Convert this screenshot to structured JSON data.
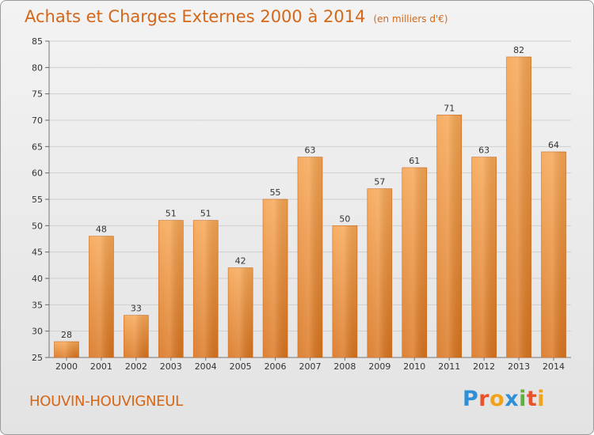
{
  "header": {
    "title": "Achats et Charges Externes 2000 à 2014",
    "unit": "(en milliers d'€)"
  },
  "footer": {
    "commune": "HOUVIN-HOUVIGNEUL",
    "brand": "Proxiti"
  },
  "colors": {
    "title": "#d4671a",
    "bar_light": "#f6a552",
    "bar_dark": "#d9741e",
    "grid": "#cfcfcf"
  },
  "chart_data": {
    "type": "bar",
    "title": "Achats et Charges Externes 2000 à 2014",
    "subtitle": "(en milliers d'€)",
    "categories": [
      "2000",
      "2001",
      "2002",
      "2003",
      "2004",
      "2005",
      "2006",
      "2007",
      "2008",
      "2009",
      "2010",
      "2011",
      "2012",
      "2013",
      "2014"
    ],
    "values": [
      28,
      48,
      33,
      51,
      51,
      42,
      55,
      63,
      50,
      57,
      61,
      71,
      63,
      82,
      64
    ],
    "ylim": [
      25,
      85
    ],
    "yticks": [
      25,
      30,
      35,
      40,
      45,
      50,
      55,
      60,
      65,
      70,
      75,
      80,
      85
    ],
    "grid": true,
    "xlabel": "",
    "ylabel": ""
  }
}
